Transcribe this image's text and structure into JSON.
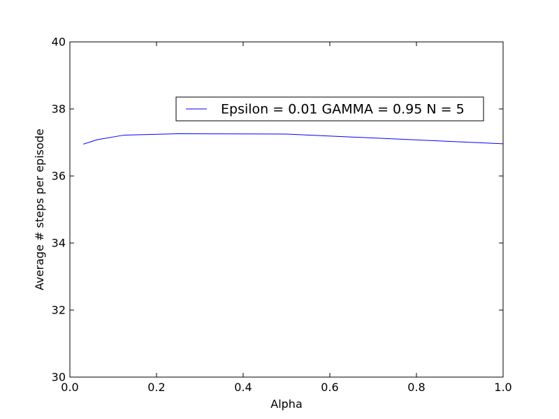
{
  "chart_data": {
    "type": "line",
    "title": "",
    "xlabel": "Alpha",
    "ylabel": "Average # steps per episode",
    "xlim": [
      0.0,
      1.0
    ],
    "ylim": [
      30,
      40
    ],
    "xticks": [
      "0.0",
      "0.2",
      "0.4",
      "0.6",
      "0.8",
      "1.0"
    ],
    "yticks": [
      "30",
      "32",
      "34",
      "36",
      "38",
      "40"
    ],
    "grid": false,
    "legend_position": "upper-right",
    "series": [
      {
        "name": "Epsilon = 0.01 GAMMA = 0.95 N = 5",
        "color": "#0000ff",
        "x": [
          0.03125,
          0.0625,
          0.125,
          0.25,
          0.5,
          1.0
        ],
        "y": [
          36.95,
          37.08,
          37.22,
          37.26,
          37.25,
          36.96
        ]
      }
    ]
  }
}
